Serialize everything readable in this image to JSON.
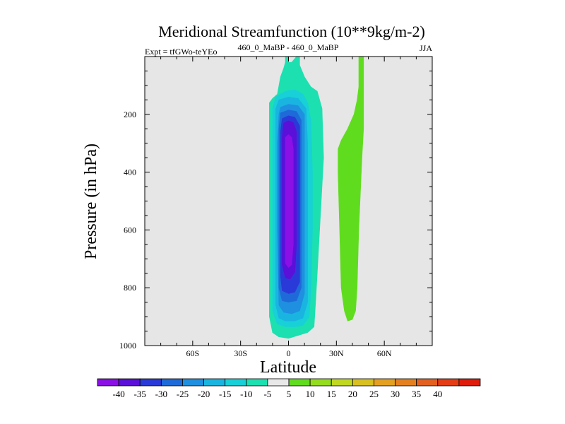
{
  "chart_data": {
    "type": "contour",
    "title": "Meridional Streamfunction (10**9kg/m-2)",
    "left_label": "Expt = tfGWo-teYEo",
    "center_label": "460_0_MaBP - 460_0_MaBP",
    "right_label": "JJA",
    "xlabel": "Latitude",
    "ylabel": "Pressure (in hPa)",
    "xlim": [
      -90,
      90
    ],
    "ylim": [
      1000,
      0
    ],
    "y_reversed": true,
    "x_ticks": [
      {
        "value": -60,
        "label": "60S"
      },
      {
        "value": -30,
        "label": "30S"
      },
      {
        "value": 0,
        "label": "0"
      },
      {
        "value": 30,
        "label": "30N"
      },
      {
        "value": 60,
        "label": "60N"
      }
    ],
    "y_ticks": [
      {
        "value": 200,
        "label": "200"
      },
      {
        "value": 400,
        "label": "400"
      },
      {
        "value": 600,
        "label": "600"
      },
      {
        "value": 800,
        "label": "800"
      },
      {
        "value": 1000,
        "label": "1000"
      }
    ],
    "background_color": "#e6e6e6",
    "colorbar": {
      "colors": [
        "#8a10e6",
        "#5a10d9",
        "#2a3ad8",
        "#1f6ad9",
        "#1e90df",
        "#1ab4e0",
        "#18d0d8",
        "#1ce0b0",
        "#e8e8e8",
        "#60dc1e",
        "#94dc1e",
        "#c0d820",
        "#d8c020",
        "#e4a020",
        "#e48020",
        "#e46020",
        "#e43c14",
        "#e01c0c"
      ],
      "labels": [
        "-40",
        "-35",
        "-30",
        "-25",
        "-20",
        "-15",
        "-10",
        "-5",
        "5",
        "10",
        "15",
        "20",
        "25",
        "30",
        "35",
        "40"
      ]
    },
    "regions": [
      {
        "name": "southern-cell-outer",
        "level": -5,
        "color": "#1ce0b0",
        "points": [
          [
            -2,
            20
          ],
          [
            -2,
            0
          ],
          [
            0,
            0
          ],
          [
            0,
            20
          ],
          [
            2,
            20
          ],
          [
            5,
            0
          ],
          [
            7,
            0
          ],
          [
            7,
            30
          ],
          [
            10,
            70
          ],
          [
            14,
            105
          ],
          [
            18,
            120
          ],
          [
            21,
            180
          ],
          [
            22,
            350
          ],
          [
            20,
            550
          ],
          [
            18,
            750
          ],
          [
            17,
            850
          ],
          [
            16,
            935
          ],
          [
            12,
            955
          ],
          [
            6,
            965
          ],
          [
            0,
            975
          ],
          [
            -6,
            970
          ],
          [
            -10,
            955
          ],
          [
            -12,
            900
          ],
          [
            -12,
            650
          ],
          [
            -12,
            400
          ],
          [
            -12,
            250
          ],
          [
            -12,
            160
          ],
          [
            -10,
            145
          ],
          [
            -7,
            130
          ],
          [
            -5,
            70
          ],
          [
            -3,
            40
          ]
        ]
      },
      {
        "name": "southern-cell-10",
        "level": -10,
        "color": "#18d0d8",
        "points": [
          [
            -8,
            140
          ],
          [
            -2,
            120
          ],
          [
            4,
            115
          ],
          [
            9,
            130
          ],
          [
            12,
            160
          ],
          [
            14,
            220
          ],
          [
            15,
            400
          ],
          [
            15,
            600
          ],
          [
            14,
            800
          ],
          [
            13,
            900
          ],
          [
            9,
            930
          ],
          [
            4,
            935
          ],
          [
            -2,
            935
          ],
          [
            -7,
            925
          ],
          [
            -10,
            880
          ],
          [
            -10,
            600
          ],
          [
            -10,
            300
          ],
          [
            -10,
            180
          ]
        ]
      },
      {
        "name": "southern-cell-15",
        "level": -15,
        "color": "#1ab4e0",
        "points": [
          [
            -6,
            150
          ],
          [
            0,
            140
          ],
          [
            6,
            145
          ],
          [
            11,
            180
          ],
          [
            12,
            300
          ],
          [
            12,
            500
          ],
          [
            12,
            700
          ],
          [
            12,
            850
          ],
          [
            9,
            905
          ],
          [
            4,
            915
          ],
          [
            -2,
            915
          ],
          [
            -6,
            905
          ],
          [
            -8,
            860
          ],
          [
            -8,
            600
          ],
          [
            -8,
            300
          ],
          [
            -8,
            180
          ]
        ]
      },
      {
        "name": "southern-cell-20",
        "level": -20,
        "color": "#1e90df",
        "points": [
          [
            -5,
            175
          ],
          [
            0,
            165
          ],
          [
            6,
            170
          ],
          [
            10,
            200
          ],
          [
            10,
            400
          ],
          [
            10,
            650
          ],
          [
            10,
            820
          ],
          [
            7,
            880
          ],
          [
            2,
            890
          ],
          [
            -3,
            885
          ],
          [
            -6,
            860
          ],
          [
            -7,
            600
          ],
          [
            -7,
            300
          ],
          [
            -6,
            200
          ]
        ]
      },
      {
        "name": "southern-cell-25",
        "level": -25,
        "color": "#1f6ad9",
        "points": [
          [
            -5,
            195
          ],
          [
            0,
            185
          ],
          [
            5,
            190
          ],
          [
            8,
            220
          ],
          [
            8,
            400
          ],
          [
            8,
            650
          ],
          [
            8,
            800
          ],
          [
            5,
            845
          ],
          [
            0,
            850
          ],
          [
            -4,
            845
          ],
          [
            -6,
            800
          ],
          [
            -6,
            500
          ],
          [
            -6,
            250
          ]
        ]
      },
      {
        "name": "southern-cell-30",
        "level": -30,
        "color": "#2a3ad8",
        "points": [
          [
            -4,
            215
          ],
          [
            0,
            205
          ],
          [
            4,
            210
          ],
          [
            7,
            240
          ],
          [
            7,
            400
          ],
          [
            7,
            650
          ],
          [
            7,
            780
          ],
          [
            4,
            815
          ],
          [
            0,
            820
          ],
          [
            -4,
            810
          ],
          [
            -5,
            760
          ],
          [
            -5,
            500
          ],
          [
            -5,
            260
          ]
        ]
      },
      {
        "name": "southern-cell-35",
        "level": -35,
        "color": "#5a10d9",
        "points": [
          [
            -3,
            230
          ],
          [
            0,
            222
          ],
          [
            3,
            228
          ],
          [
            5,
            260
          ],
          [
            5,
            450
          ],
          [
            5,
            650
          ],
          [
            4,
            745
          ],
          [
            1,
            770
          ],
          [
            -2,
            765
          ],
          [
            -4,
            720
          ],
          [
            -4,
            450
          ],
          [
            -4,
            280
          ]
        ]
      },
      {
        "name": "southern-cell-40",
        "level": -40,
        "color": "#8a10e6",
        "points": [
          [
            -2,
            280
          ],
          [
            0,
            270
          ],
          [
            2,
            280
          ],
          [
            3,
            320
          ],
          [
            3,
            500
          ],
          [
            3,
            650
          ],
          [
            2,
            720
          ],
          [
            0,
            730
          ],
          [
            -2,
            715
          ],
          [
            -2,
            600
          ],
          [
            -2,
            420
          ]
        ]
      },
      {
        "name": "northern-cell",
        "level": 5,
        "color": "#60dc1e",
        "points": [
          [
            44,
            0
          ],
          [
            47,
            0
          ],
          [
            47,
            105
          ],
          [
            47,
            150
          ],
          [
            47,
            250
          ],
          [
            46,
            350
          ],
          [
            44,
            600
          ],
          [
            43,
            800
          ],
          [
            42,
            880
          ],
          [
            40,
            910
          ],
          [
            37,
            915
          ],
          [
            35,
            880
          ],
          [
            33,
            800
          ],
          [
            32,
            600
          ],
          [
            31,
            400
          ],
          [
            31,
            320
          ],
          [
            33,
            290
          ],
          [
            37,
            250
          ],
          [
            41,
            200
          ],
          [
            43,
            150
          ],
          [
            44,
            105
          ]
        ]
      }
    ]
  }
}
